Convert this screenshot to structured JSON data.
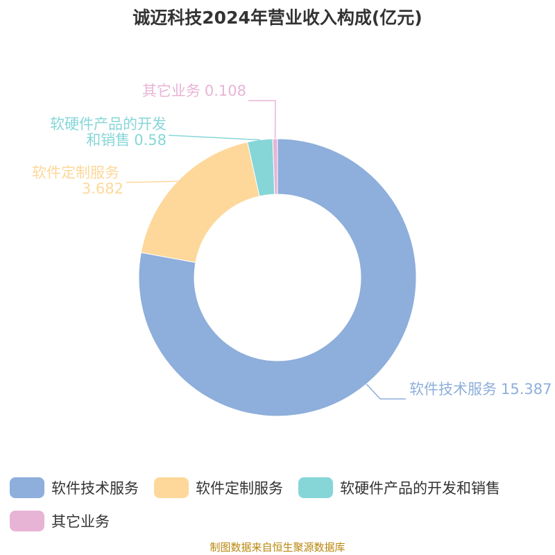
{
  "chart_data": {
    "type": "donut",
    "title": "诚迈科技2024年营业收入构成(亿元)",
    "categories": [
      "软件技术服务",
      "软件定制服务",
      "软硬件产品的开发和销售",
      "其它业务"
    ],
    "values": [
      15.387,
      3.682,
      0.58,
      0.108
    ],
    "colors": [
      "#8eaedb",
      "#fdd89a",
      "#86d6d8",
      "#e8b4d6"
    ],
    "source": "制图数据来自恒生聚源数据库"
  }
}
